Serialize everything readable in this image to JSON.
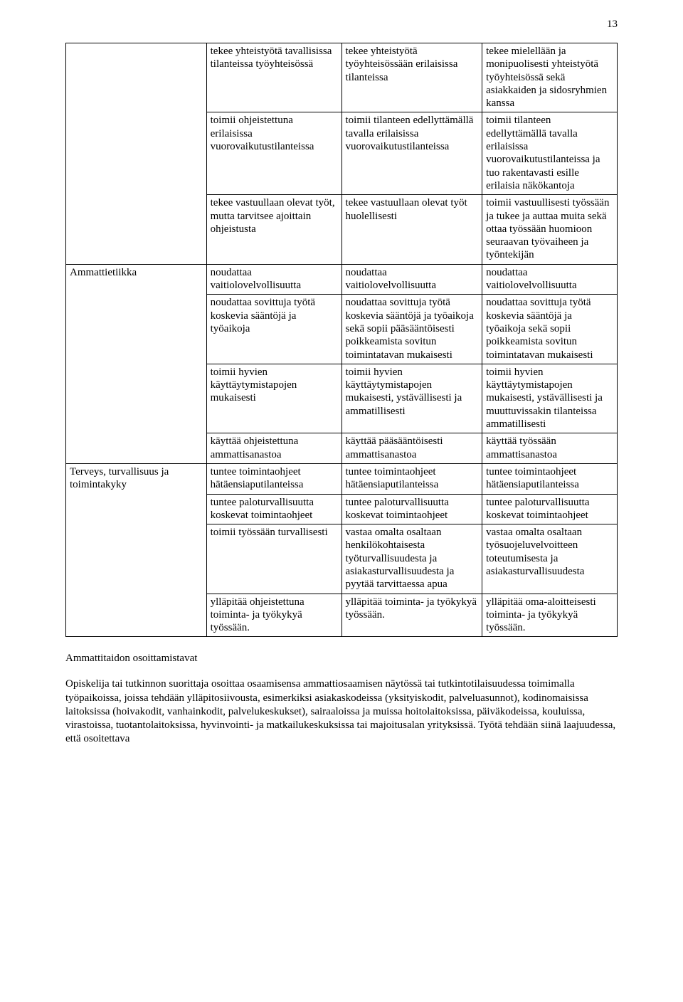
{
  "page_number": "13",
  "colors": {
    "text": "#000000",
    "border": "#000000",
    "background": "#ffffff"
  },
  "typography": {
    "body_font": "Garamond / serif",
    "body_size_pt": 11,
    "line_height": 1.22
  },
  "table": {
    "type": "table",
    "column_widths_pct": [
      25.5,
      24.5,
      25.5,
      24.5
    ],
    "row_headers": [
      "",
      "",
      "",
      "Ammattietiikka",
      "",
      "",
      "",
      "Terveys, turvallisuus ja toimintakyky",
      "",
      "",
      ""
    ],
    "rows": [
      {
        "c2": "tekee yhteistyötä tavallisissa tilanteissa työyhteisössä",
        "c3": "tekee yhteistyötä työyhteisössään erilaisissa tilanteissa",
        "c4": "tekee mielellään ja monipuolisesti yhteistyötä työyhteisössä sekä asiakkaiden ja sidosryhmien kanssa"
      },
      {
        "c2": "toimii ohjeistettuna erilaisissa vuorovaikutustilanteissa",
        "c3": "toimii tilanteen edellyttämällä tavalla erilaisissa vuorovaikutustilanteissa",
        "c4": "toimii tilanteen edellyttämällä tavalla erilaisissa vuorovaikutustilanteissa ja tuo rakentavasti esille erilaisia näkökantoja"
      },
      {
        "c2": "tekee vastuullaan olevat työt, mutta tarvitsee ajoittain ohjeistusta",
        "c3": "tekee vastuullaan olevat työt huolellisesti",
        "c4": "toimii vastuullisesti työssään ja tukee ja auttaa muita sekä ottaa työssään huomioon seuraavan työvaiheen ja työntekijän"
      },
      {
        "c2": "noudattaa vaitiolovelvollisuutta",
        "c3": "noudattaa vaitiolovelvollisuutta",
        "c4": "noudattaa vaitiolovelvollisuutta"
      },
      {
        "c2": "noudattaa sovittuja työtä koskevia sääntöjä ja työaikoja",
        "c3": "noudattaa sovittuja työtä koskevia sääntöjä ja työaikoja sekä sopii pääsääntöisesti poikkeamista sovitun toimintatavan mukaisesti",
        "c4": "noudattaa sovittuja työtä koskevia sääntöjä ja työaikoja sekä sopii poikkeamista sovitun toimintatavan mukaisesti"
      },
      {
        "c2": "toimii hyvien käyttäytymistapojen mukaisesti",
        "c3": "toimii hyvien käyttäytymistapojen mukaisesti, ystävällisesti ja ammatillisesti",
        "c4": "toimii hyvien käyttäytymistapojen mukaisesti, ystävällisesti ja muuttuvissakin tilanteissa ammatillisesti"
      },
      {
        "c2": "käyttää ohjeistettuna ammattisanastoa",
        "c3": "käyttää pääsääntöisesti ammattisanastoa",
        "c4": "käyttää työssään ammattisanastoa"
      },
      {
        "c2": "tuntee toimintaohjeet hätäensiaputilanteissa",
        "c3": "tuntee toimintaohjeet hätäensiaputilanteissa",
        "c4": "tuntee toimintaohjeet hätäensiaputilanteissa"
      },
      {
        "c2": "tuntee paloturvallisuutta koskevat toimintaohjeet",
        "c3": "tuntee paloturvallisuutta koskevat toimintaohjeet",
        "c4": "tuntee paloturvallisuutta koskevat toimintaohjeet"
      },
      {
        "c2": "toimii työssään turvallisesti",
        "c3": "vastaa omalta osaltaan henkilökohtaisesta työturvallisuudesta ja asiakasturvallisuudesta ja pyytää tarvittaessa apua",
        "c4": "vastaa omalta osaltaan työsuojeluvelvoitteen toteutumisesta ja asiakasturvallisuudesta"
      },
      {
        "c2": "ylläpitää ohjeistettuna toiminta- ja työkykyä työssään.",
        "c3": "ylläpitää toiminta- ja työkykyä työssään.",
        "c4": "ylläpitää oma-aloitteisesti toiminta- ja työkykyä työssään."
      }
    ]
  },
  "footer": {
    "heading": "Ammattitaidon osoittamistavat",
    "paragraph": "Opiskelija tai tutkinnon suorittaja osoittaa osaamisensa ammattiosaamisen näytössä tai tutkintotilaisuudessa toimimalla työpaikoissa, joissa tehdään ylläpitosiivousta, esimerkiksi asiakaskodeissa (yksityiskodit, palveluasunnot), kodinomaisissa laitoksissa (hoivakodit, vanhainkodit, palvelukeskukset), sairaaloissa ja muissa hoitolaitoksissa, päiväkodeissa, kouluissa, virastoissa, tuotantolaitoksissa, hyvinvointi- ja matkailukeskuksissa tai majoitusalan yrityksissä. Työtä tehdään siinä laajuudessa, että osoitettava"
  }
}
